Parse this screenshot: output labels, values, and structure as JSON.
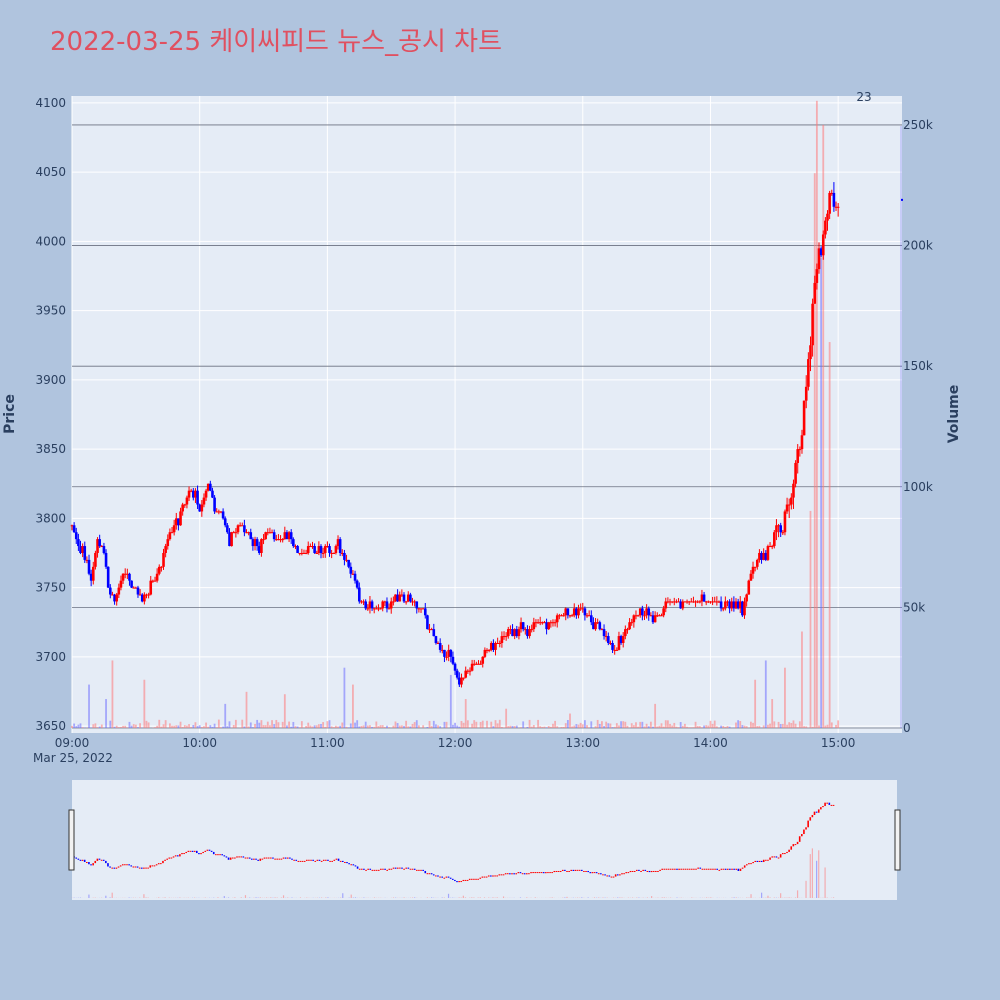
{
  "chart_data": {
    "type": "candlestick",
    "title": "2022-03-25 케이씨피드 뉴스_공시 차트",
    "date_label": "Mar 25, 2022",
    "y_label": "Price",
    "y2_label": "Volume",
    "annotation": "23",
    "x_ticks": [
      "09:00",
      "10:00",
      "11:00",
      "12:00",
      "13:00",
      "14:00",
      "15:00"
    ],
    "y_ticks": [
      3650,
      3700,
      3750,
      3800,
      3850,
      3900,
      3950,
      4000,
      4050,
      4100
    ],
    "volume_ticks": [
      {
        "value": 0,
        "label": "0"
      },
      {
        "value": 50000,
        "label": "50k"
      },
      {
        "value": 100000,
        "label": "100k"
      },
      {
        "value": 150000,
        "label": "150k"
      },
      {
        "value": 200000,
        "label": "200k"
      },
      {
        "value": 250000,
        "label": "250k"
      }
    ],
    "y_range": [
      3645,
      4105
    ],
    "volume_range": [
      0,
      262000
    ],
    "x_range_minutes": [
      540,
      930
    ],
    "colors": {
      "up": "#ff0000",
      "down": "#0000ff",
      "background": "#b0c4de",
      "plot": "#e5ecf6",
      "title": "#e05060"
    },
    "price_anchors": [
      [
        540,
        3795
      ],
      [
        543,
        3780
      ],
      [
        547,
        3770
      ],
      [
        549,
        3755
      ],
      [
        552,
        3780
      ],
      [
        555,
        3775
      ],
      [
        558,
        3745
      ],
      [
        560,
        3740
      ],
      [
        564,
        3760
      ],
      [
        567,
        3755
      ],
      [
        570,
        3750
      ],
      [
        574,
        3740
      ],
      [
        578,
        3755
      ],
      [
        582,
        3765
      ],
      [
        585,
        3785
      ],
      [
        590,
        3800
      ],
      [
        595,
        3820
      ],
      [
        598,
        3815
      ],
      [
        600,
        3805
      ],
      [
        604,
        3825
      ],
      [
        607,
        3810
      ],
      [
        610,
        3800
      ],
      [
        614,
        3785
      ],
      [
        618,
        3795
      ],
      [
        622,
        3790
      ],
      [
        628,
        3780
      ],
      [
        632,
        3790
      ],
      [
        637,
        3785
      ],
      [
        642,
        3790
      ],
      [
        647,
        3775
      ],
      [
        652,
        3780
      ],
      [
        658,
        3775
      ],
      [
        665,
        3780
      ],
      [
        668,
        3770
      ],
      [
        672,
        3760
      ],
      [
        675,
        3740
      ],
      [
        680,
        3735
      ],
      [
        685,
        3735
      ],
      [
        690,
        3740
      ],
      [
        695,
        3745
      ],
      [
        700,
        3740
      ],
      [
        705,
        3730
      ],
      [
        710,
        3715
      ],
      [
        714,
        3705
      ],
      [
        717,
        3700
      ],
      [
        720,
        3690
      ],
      [
        722,
        3680
      ],
      [
        726,
        3690
      ],
      [
        730,
        3695
      ],
      [
        735,
        3705
      ],
      [
        740,
        3710
      ],
      [
        745,
        3715
      ],
      [
        750,
        3720
      ],
      [
        755,
        3720
      ],
      [
        760,
        3725
      ],
      [
        765,
        3725
      ],
      [
        770,
        3730
      ],
      [
        775,
        3732
      ],
      [
        780,
        3735
      ],
      [
        785,
        3725
      ],
      [
        790,
        3715
      ],
      [
        795,
        3705
      ],
      [
        800,
        3720
      ],
      [
        805,
        3730
      ],
      [
        810,
        3735
      ],
      [
        815,
        3725
      ],
      [
        820,
        3740
      ],
      [
        825,
        3740
      ],
      [
        830,
        3740
      ],
      [
        835,
        3742
      ],
      [
        840,
        3740
      ],
      [
        845,
        3738
      ],
      [
        850,
        3738
      ],
      [
        855,
        3735
      ],
      [
        857,
        3745
      ],
      [
        860,
        3765
      ],
      [
        863,
        3770
      ],
      [
        866,
        3775
      ],
      [
        870,
        3785
      ],
      [
        874,
        3795
      ],
      [
        878,
        3820
      ],
      [
        882,
        3855
      ],
      [
        885,
        3890
      ],
      [
        887,
        3930
      ],
      [
        889,
        3975
      ],
      [
        891,
        4000
      ],
      [
        892,
        3990
      ],
      [
        894,
        4010
      ],
      [
        896,
        4040
      ],
      [
        898,
        4020
      ],
      [
        900,
        4030
      ]
    ],
    "volume_spikes": [
      [
        548,
        18000
      ],
      [
        556,
        12000
      ],
      [
        559,
        28000
      ],
      [
        574,
        20000
      ],
      [
        612,
        10000
      ],
      [
        622,
        15000
      ],
      [
        640,
        14000
      ],
      [
        668,
        25000
      ],
      [
        672,
        18000
      ],
      [
        718,
        22000
      ],
      [
        725,
        12000
      ],
      [
        744,
        8000
      ],
      [
        774,
        6000
      ],
      [
        814,
        10000
      ],
      [
        861,
        20000
      ],
      [
        866,
        28000
      ],
      [
        869,
        12000
      ],
      [
        875,
        25000
      ],
      [
        883,
        40000
      ],
      [
        887,
        90000
      ],
      [
        889,
        230000
      ],
      [
        890,
        260000
      ],
      [
        892,
        195000
      ],
      [
        893,
        250000
      ],
      [
        896,
        160000
      ]
    ],
    "dangling_point": [
      930,
      4030
    ]
  }
}
